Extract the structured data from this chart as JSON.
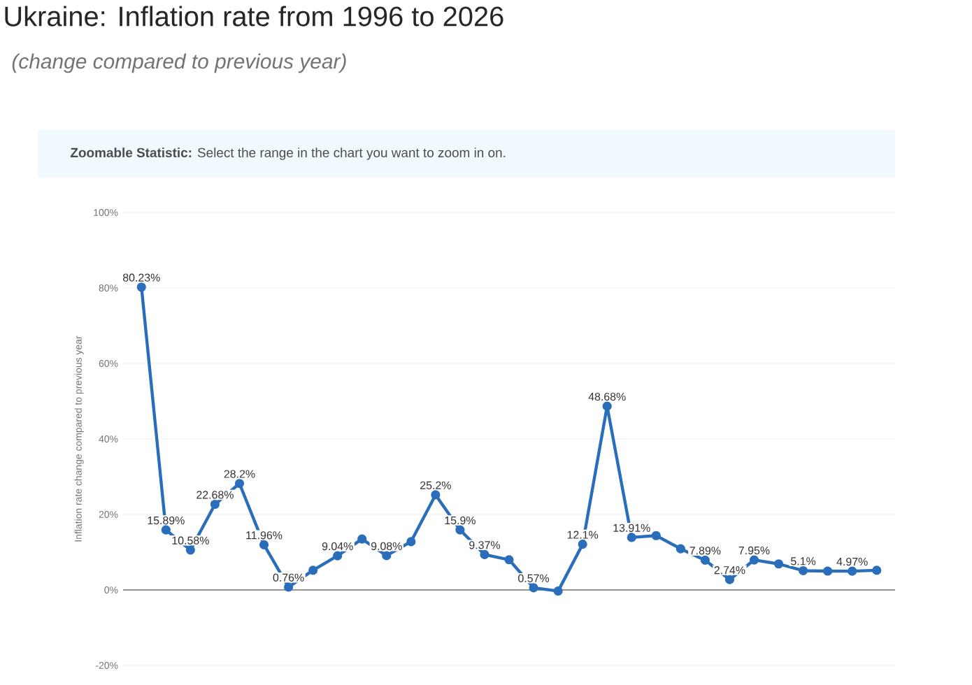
{
  "chart_data": {
    "type": "line",
    "title": "Ukraine: Inflation rate from 1996 to 2026",
    "subtitle": "(change compared to previous year)",
    "ylabel": "Inflation rate change compared to previous year",
    "annotations": [
      "**Zoomable Statistic:** Select the range in the chart you want to zoom in on."
    ],
    "categories": [
      null,
      null,
      null,
      null,
      null,
      null,
      null,
      null,
      null,
      null,
      null,
      null,
      null,
      null,
      null,
      null,
      null,
      null,
      null,
      null,
      null,
      null,
      null,
      null,
      null,
      null,
      null,
      null,
      null,
      null,
      null
    ],
    "values": [
      80.23,
      15.89,
      10.58,
      22.68,
      28.2,
      11.96,
      0.76,
      5.2,
      9.04,
      13.5,
      9.08,
      12.8,
      25.2,
      15.9,
      9.37,
      8.0,
      0.57,
      -0.3,
      12.1,
      48.68,
      13.91,
      14.4,
      10.9,
      7.89,
      2.74,
      7.95,
      6.9,
      5.1,
      5.0,
      4.97,
      5.2
    ],
    "value_labels": [
      "80.23%",
      "15.89%",
      "10.58%",
      "22.68%",
      "28.2%",
      "11.96%",
      "0.76%",
      null,
      "9.04%",
      null,
      "9.08%",
      null,
      "25.2%",
      "15.9%",
      "9.37%",
      null,
      "0.57%",
      null,
      "12.1%",
      "48.68%",
      "13.91%",
      null,
      null,
      "7.89%",
      "2.74%",
      "7.95%",
      null,
      "5.1%",
      null,
      "4.97%",
      null
    ],
    "color": "#2a6ebb",
    "marker": "circle",
    "line_style": "solid",
    "grid": "y",
    "ylim": [
      -20,
      100
    ],
    "yticks": [
      {
        "value": -20,
        "label": "-20%"
      },
      {
        "value": 0,
        "label": "0%"
      },
      {
        "value": 20,
        "label": "20%"
      },
      {
        "value": 40,
        "label": "40%"
      },
      {
        "value": 60,
        "label": "60%"
      },
      {
        "value": 80,
        "label": "80%"
      },
      {
        "value": 100,
        "label": "100%"
      }
    ]
  }
}
